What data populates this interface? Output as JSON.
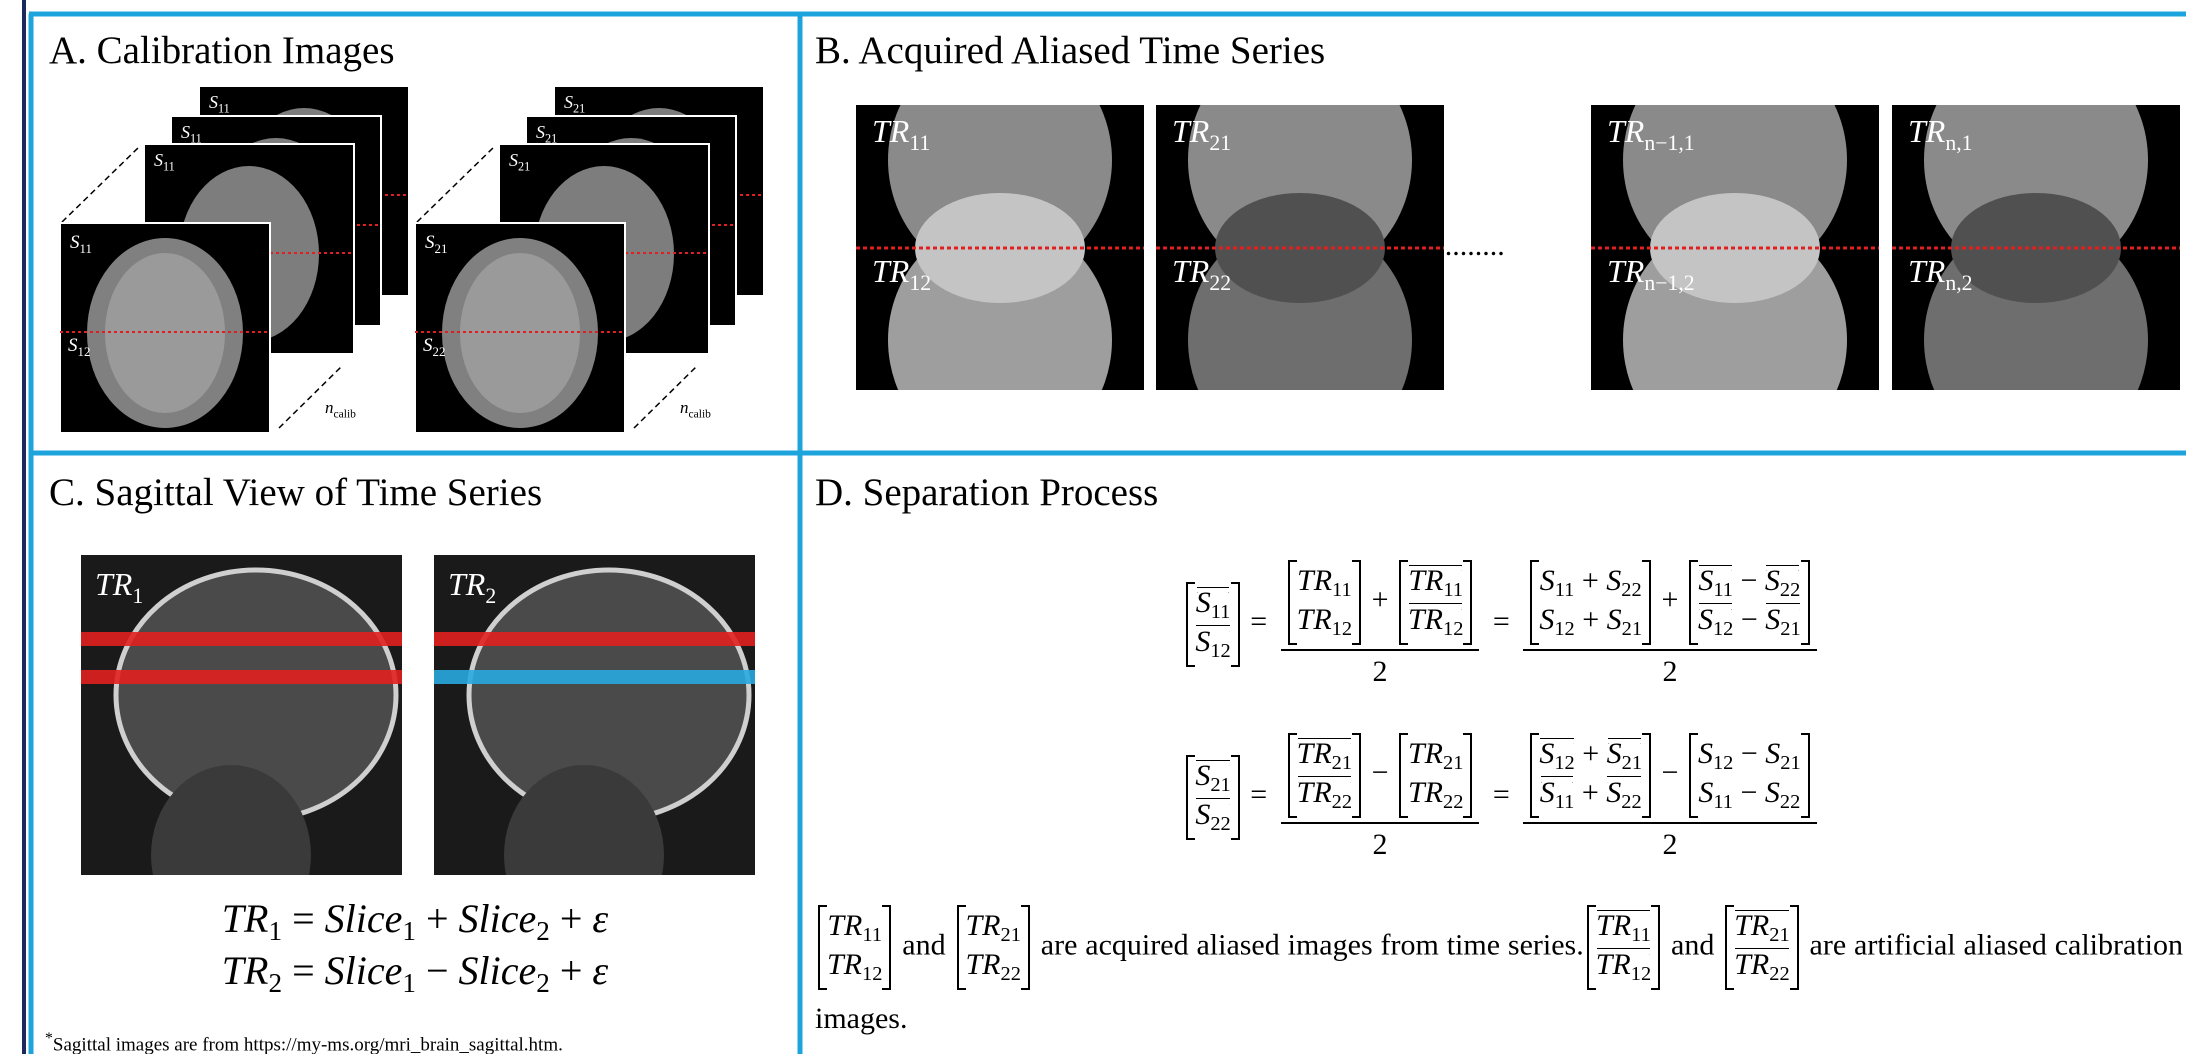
{
  "panels": {
    "a": {
      "title": "A. Calibration Images",
      "stacks": [
        {
          "back": [
            {
              "base": "S",
              "sub": "11"
            },
            {
              "base": "S",
              "sub": "11"
            },
            {
              "base": "S",
              "sub": "11"
            }
          ],
          "front_top": {
            "base": "S",
            "sub": "11"
          },
          "front_bottom": {
            "base": "S",
            "sub": "12"
          },
          "count": {
            "base": "n",
            "sub": "calib"
          }
        },
        {
          "back": [
            {
              "base": "S",
              "sub": "21"
            },
            {
              "base": "S",
              "sub": "21"
            },
            {
              "base": "S",
              "sub": "21"
            }
          ],
          "front_top": {
            "base": "S",
            "sub": "21"
          },
          "front_bottom": {
            "base": "S",
            "sub": "22"
          },
          "count": {
            "base": "n",
            "sub": "calib"
          }
        }
      ]
    },
    "b": {
      "title": "B. Acquired Aliased Time Series",
      "frames": [
        {
          "top": {
            "base": "TR",
            "sub": "11"
          },
          "bottom": {
            "base": "TR",
            "sub": "12"
          }
        },
        {
          "top": {
            "base": "TR",
            "sub": "21"
          },
          "bottom": {
            "base": "TR",
            "sub": "22"
          }
        },
        {
          "top": {
            "base": "TR",
            "sub": "n−1,1"
          },
          "bottom": {
            "base": "TR",
            "sub": "n−1,2"
          }
        },
        {
          "top": {
            "base": "TR",
            "sub": "n,1"
          },
          "bottom": {
            "base": "TR",
            "sub": "n,2"
          }
        }
      ],
      "ellipsis": "........."
    },
    "c": {
      "title": "C. Sagittal View of Time Series",
      "images": [
        {
          "label": {
            "base": "TR",
            "sub": "1"
          }
        },
        {
          "label": {
            "base": "TR",
            "sub": "2"
          }
        }
      ],
      "equations": [
        [
          {
            "base": "TR",
            "sub": "1"
          },
          "=",
          {
            "base": "Slice",
            "sub": "1"
          },
          "+",
          {
            "base": "Slice",
            "sub": "2"
          },
          "+",
          {
            "base": "ε"
          }
        ],
        [
          {
            "base": "TR",
            "sub": "2"
          },
          "=",
          {
            "base": "Slice",
            "sub": "1"
          },
          "−",
          {
            "base": "Slice",
            "sub": "2"
          },
          "+",
          {
            "base": "ε"
          }
        ]
      ],
      "footnote": {
        "mark": "*",
        "text": "Sagittal images are from https://my-ms.org/mri_brain_sagittal.htm."
      }
    },
    "d": {
      "title": "D. Separation Process",
      "equations": [
        [
          {
            "matrix": [
              [
                {
                  "base": "S",
                  "sub": "11",
                  "hat": true
                }
              ],
              [
                {
                  "base": "S",
                  "sub": "12",
                  "hat": true
                }
              ]
            ]
          },
          "=",
          {
            "num": [
              {
                "matrix": [
                  [
                    {
                      "base": "TR",
                      "sub": "11"
                    }
                  ],
                  [
                    {
                      "base": "TR",
                      "sub": "12"
                    }
                  ]
                ]
              },
              "+",
              {
                "matrix": [
                  [
                    {
                      "base": "TR",
                      "sub": "11",
                      "hat": true
                    }
                  ],
                  [
                    {
                      "base": "TR",
                      "sub": "12",
                      "hat": true
                    }
                  ]
                ]
              }
            ],
            "den": [
              "2"
            ]
          },
          "=",
          {
            "num": [
              {
                "matrix": [
                  [
                    {
                      "base": "S",
                      "sub": "11"
                    },
                    "+",
                    {
                      "base": "S",
                      "sub": "22"
                    }
                  ],
                  [
                    {
                      "base": "S",
                      "sub": "12"
                    },
                    "+",
                    {
                      "base": "S",
                      "sub": "21"
                    }
                  ]
                ]
              },
              "+",
              {
                "matrix": [
                  [
                    {
                      "base": "S",
                      "sub": "11",
                      "hat": true
                    },
                    "−",
                    {
                      "base": "S",
                      "sub": "22",
                      "hat": true
                    }
                  ],
                  [
                    {
                      "base": "S",
                      "sub": "12",
                      "hat": true
                    },
                    "−",
                    {
                      "base": "S",
                      "sub": "21",
                      "hat": true
                    }
                  ]
                ]
              }
            ],
            "den": [
              "2"
            ]
          }
        ],
        [
          {
            "matrix": [
              [
                {
                  "base": "S",
                  "sub": "21",
                  "hat": true
                }
              ],
              [
                {
                  "base": "S",
                  "sub": "22",
                  "hat": true
                }
              ]
            ]
          },
          "=",
          {
            "num": [
              {
                "matrix": [
                  [
                    {
                      "base": "TR",
                      "sub": "21",
                      "hat": true
                    }
                  ],
                  [
                    {
                      "base": "TR",
                      "sub": "22",
                      "hat": true
                    }
                  ]
                ]
              },
              "−",
              {
                "matrix": [
                  [
                    {
                      "base": "TR",
                      "sub": "21"
                    }
                  ],
                  [
                    {
                      "base": "TR",
                      "sub": "22"
                    }
                  ]
                ]
              }
            ],
            "den": [
              "2"
            ]
          },
          "=",
          {
            "num": [
              {
                "matrix": [
                  [
                    {
                      "base": "S",
                      "sub": "12",
                      "hat": true
                    },
                    "+",
                    {
                      "base": "S",
                      "sub": "21",
                      "hat": true
                    }
                  ],
                  [
                    {
                      "base": "S",
                      "sub": "11",
                      "hat": true
                    },
                    "+",
                    {
                      "base": "S",
                      "sub": "22",
                      "hat": true
                    }
                  ]
                ]
              },
              "−",
              {
                "matrix": [
                  [
                    {
                      "base": "S",
                      "sub": "12"
                    },
                    "−",
                    {
                      "base": "S",
                      "sub": "21"
                    }
                  ],
                  [
                    {
                      "base": "S",
                      "sub": "11"
                    },
                    "−",
                    {
                      "base": "S",
                      "sub": "22"
                    }
                  ]
                ]
              }
            ],
            "den": [
              "2"
            ]
          }
        ]
      ],
      "caption": [
        {
          "matrix": [
            [
              {
                "base": "TR",
                "sub": "11"
              }
            ],
            [
              {
                "base": "TR",
                "sub": "12"
              }
            ]
          ]
        },
        " and ",
        {
          "matrix": [
            [
              {
                "base": "TR",
                "sub": "21"
              }
            ],
            [
              {
                "base": "TR",
                "sub": "22"
              }
            ]
          ]
        },
        " are acquired aliased images from time series.",
        {
          "matrix": [
            [
              {
                "base": "TR",
                "sub": "11",
                "hat": true
              }
            ],
            [
              {
                "base": "TR",
                "sub": "12",
                "hat": true
              }
            ]
          ]
        },
        " and ",
        {
          "matrix": [
            [
              {
                "base": "TR",
                "sub": "21",
                "hat": true
              }
            ],
            [
              {
                "base": "TR",
                "sub": "22",
                "hat": true
              }
            ]
          ]
        },
        " are artificial aliased calibration images."
      ]
    }
  }
}
